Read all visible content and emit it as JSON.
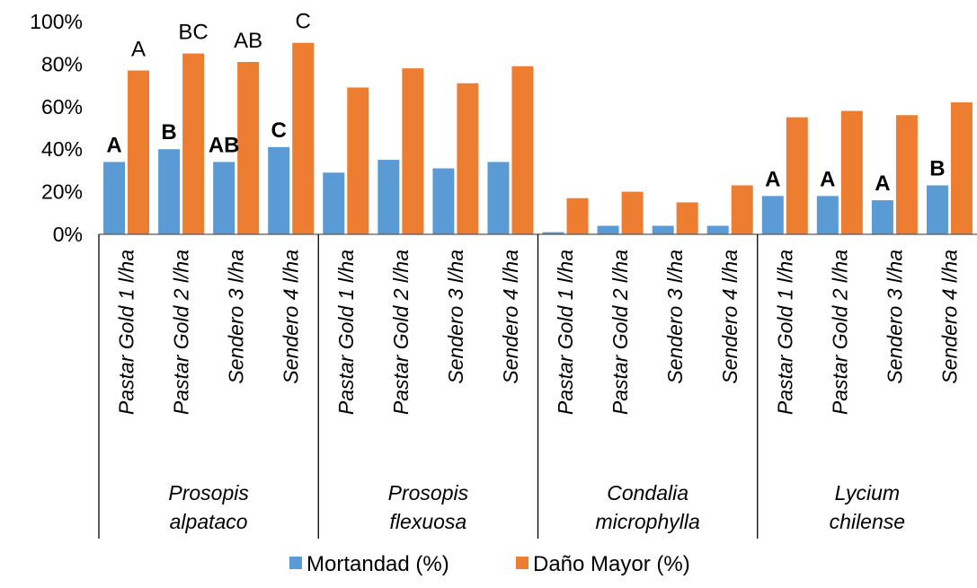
{
  "chart_data": {
    "type": "bar",
    "ylim": [
      0,
      100
    ],
    "ytick_step": 20,
    "y_unit": "%",
    "legend_position": "bottom",
    "grid": false,
    "groups": [
      {
        "name": "Prosopis alpataco",
        "name_lines": [
          "Prosopis",
          "alpataco"
        ],
        "categories": [
          "Pastar Gold 1 l/ha",
          "Pastar Gold 2 l/ha",
          "Sendero 3 l/ha",
          "Sendero 4 l/ha"
        ],
        "mortandad": [
          34,
          40,
          34,
          41
        ],
        "dano_mayor": [
          77,
          85,
          81,
          90
        ],
        "mortandad_labels": [
          "A",
          "B",
          "AB",
          "C"
        ],
        "dano_mayor_labels": [
          "A",
          "BC",
          "AB",
          "C"
        ]
      },
      {
        "name": "Prosopis flexuosa",
        "name_lines": [
          "Prosopis",
          "flexuosa"
        ],
        "categories": [
          "Pastar Gold 1 l/ha",
          "Pastar Gold 2 l/ha",
          "Sendero 3 l/ha",
          "Sendero 4 l/ha"
        ],
        "mortandad": [
          29,
          35,
          31,
          34
        ],
        "dano_mayor": [
          69,
          78,
          71,
          79
        ],
        "mortandad_labels": [
          "",
          "",
          "",
          ""
        ],
        "dano_mayor_labels": [
          "",
          "",
          "",
          ""
        ]
      },
      {
        "name": "Condalia microphylla",
        "name_lines": [
          "Condalia",
          "microphylla"
        ],
        "categories": [
          "Pastar Gold 1 l/ha",
          "Pastar Gold 2 l/ha",
          "Sendero 3 l/ha",
          "Sendero 4 l/ha"
        ],
        "mortandad": [
          1,
          4,
          4,
          4
        ],
        "dano_mayor": [
          17,
          20,
          15,
          23
        ],
        "mortandad_labels": [
          "",
          "",
          "",
          ""
        ],
        "dano_mayor_labels": [
          "",
          "",
          "",
          ""
        ]
      },
      {
        "name": "Lycium chilense",
        "name_lines": [
          "Lycium",
          "chilense"
        ],
        "categories": [
          "Pastar Gold 1 l/ha",
          "Pastar Gold 2 l/ha",
          "Sendero 3 l/ha",
          "Sendero 4 l/ha"
        ],
        "mortandad": [
          18,
          18,
          16,
          23
        ],
        "dano_mayor": [
          55,
          58,
          56,
          62
        ],
        "mortandad_labels": [
          "A",
          "A",
          "A",
          "B"
        ],
        "dano_mayor_labels": [
          "",
          "",
          "",
          ""
        ]
      }
    ],
    "series": [
      {
        "name": "Mortandad (%)",
        "key": "mortandad",
        "color": "#5b9bd5"
      },
      {
        "name": "Daño Mayor (%)",
        "key": "dano_mayor",
        "color": "#ed7d31"
      }
    ]
  }
}
